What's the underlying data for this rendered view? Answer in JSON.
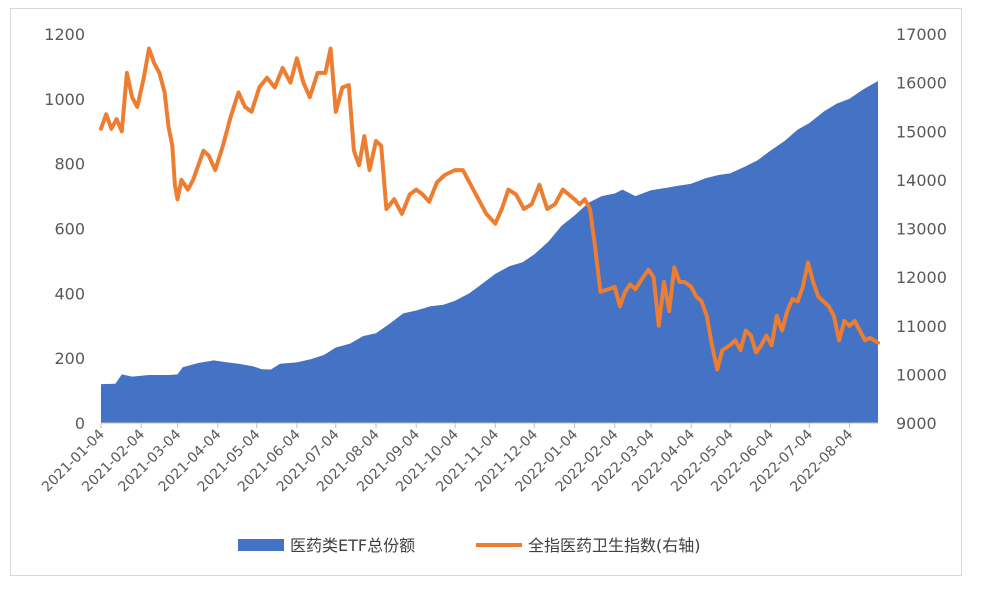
{
  "chart_data": {
    "type": "area",
    "title": "",
    "x_ticks": [
      "2021-01-04",
      "2021-02-04",
      "2021-03-04",
      "2021-04-04",
      "2021-05-04",
      "2021-06-04",
      "2021-07-04",
      "2021-08-04",
      "2021-09-04",
      "2021-10-04",
      "2021-11-04",
      "2021-12-04",
      "2022-01-04",
      "2022-02-04",
      "2022-03-04",
      "2022-04-04",
      "2022-05-04",
      "2022-06-04",
      "2022-07-04",
      "2022-08-04"
    ],
    "x_end": "2022-08-26",
    "y_left": {
      "min": 0,
      "max": 1200,
      "step": 200,
      "ticks": [
        "0",
        "200",
        "400",
        "600",
        "800",
        "1000",
        "1200"
      ]
    },
    "y_right": {
      "min": 9000,
      "max": 17000,
      "step": 1000,
      "ticks": [
        "9000",
        "10000",
        "11000",
        "12000",
        "13000",
        "14000",
        "15000",
        "16000",
        "17000"
      ]
    },
    "grid": false,
    "legend_position": "bottom",
    "colors": {
      "etf": "#4472C4",
      "index": "#ED7D31"
    },
    "series": [
      {
        "name": "医药类ETF总份额",
        "type": "area",
        "axis": "left",
        "points": [
          [
            "2021-01-04",
            120
          ],
          [
            "2021-01-15",
            121
          ],
          [
            "2021-01-20",
            150
          ],
          [
            "2021-01-28",
            143
          ],
          [
            "2021-02-10",
            148
          ],
          [
            "2021-02-25",
            148
          ],
          [
            "2021-03-04",
            150
          ],
          [
            "2021-03-08",
            172
          ],
          [
            "2021-03-20",
            185
          ],
          [
            "2021-04-01",
            193
          ],
          [
            "2021-04-10",
            188
          ],
          [
            "2021-04-20",
            183
          ],
          [
            "2021-05-01",
            175
          ],
          [
            "2021-05-08",
            166
          ],
          [
            "2021-05-15",
            165
          ],
          [
            "2021-05-22",
            183
          ],
          [
            "2021-06-04",
            187
          ],
          [
            "2021-06-15",
            197
          ],
          [
            "2021-06-25",
            210
          ],
          [
            "2021-07-04",
            233
          ],
          [
            "2021-07-15",
            245
          ],
          [
            "2021-07-25",
            268
          ],
          [
            "2021-08-04",
            277
          ],
          [
            "2021-08-15",
            308
          ],
          [
            "2021-08-25",
            338
          ],
          [
            "2021-09-04",
            347
          ],
          [
            "2021-09-15",
            360
          ],
          [
            "2021-09-25",
            365
          ],
          [
            "2021-10-04",
            377
          ],
          [
            "2021-10-15",
            400
          ],
          [
            "2021-10-25",
            430
          ],
          [
            "2021-11-04",
            460
          ],
          [
            "2021-11-15",
            484
          ],
          [
            "2021-11-25",
            496
          ],
          [
            "2021-12-04",
            520
          ],
          [
            "2021-12-15",
            560
          ],
          [
            "2021-12-25",
            608
          ],
          [
            "2022-01-04",
            640
          ],
          [
            "2022-01-15",
            680
          ],
          [
            "2022-01-25",
            700
          ],
          [
            "2022-02-04",
            708
          ],
          [
            "2022-02-10",
            720
          ],
          [
            "2022-02-20",
            700
          ],
          [
            "2022-03-04",
            718
          ],
          [
            "2022-03-15",
            725
          ],
          [
            "2022-03-25",
            732
          ],
          [
            "2022-04-04",
            738
          ],
          [
            "2022-04-15",
            755
          ],
          [
            "2022-04-25",
            765
          ],
          [
            "2022-05-04",
            770
          ],
          [
            "2022-05-15",
            790
          ],
          [
            "2022-05-25",
            810
          ],
          [
            "2022-06-04",
            840
          ],
          [
            "2022-06-15",
            870
          ],
          [
            "2022-06-25",
            905
          ],
          [
            "2022-07-04",
            925
          ],
          [
            "2022-07-15",
            960
          ],
          [
            "2022-07-25",
            985
          ],
          [
            "2022-08-04",
            1000
          ],
          [
            "2022-08-15",
            1030
          ],
          [
            "2022-08-26",
            1055
          ]
        ]
      },
      {
        "name": "全指医药卫生指数(右轴)",
        "type": "line",
        "axis": "right",
        "points": [
          [
            "2021-01-04",
            15050
          ],
          [
            "2021-01-08",
            15350
          ],
          [
            "2021-01-12",
            15050
          ],
          [
            "2021-01-16",
            15250
          ],
          [
            "2021-01-20",
            15000
          ],
          [
            "2021-01-24",
            16200
          ],
          [
            "2021-01-28",
            15700
          ],
          [
            "2021-02-01",
            15500
          ],
          [
            "2021-02-06",
            16100
          ],
          [
            "2021-02-10",
            16700
          ],
          [
            "2021-02-14",
            16400
          ],
          [
            "2021-02-18",
            16200
          ],
          [
            "2021-02-22",
            15800
          ],
          [
            "2021-02-25",
            15100
          ],
          [
            "2021-02-28",
            14700
          ],
          [
            "2021-03-02",
            13900
          ],
          [
            "2021-03-04",
            13600
          ],
          [
            "2021-03-07",
            14000
          ],
          [
            "2021-03-12",
            13800
          ],
          [
            "2021-03-16",
            14000
          ],
          [
            "2021-03-20",
            14300
          ],
          [
            "2021-03-24",
            14600
          ],
          [
            "2021-03-28",
            14500
          ],
          [
            "2021-04-02",
            14200
          ],
          [
            "2021-04-08",
            14700
          ],
          [
            "2021-04-14",
            15300
          ],
          [
            "2021-04-20",
            15800
          ],
          [
            "2021-04-25",
            15500
          ],
          [
            "2021-04-30",
            15400
          ],
          [
            "2021-05-06",
            15900
          ],
          [
            "2021-05-12",
            16100
          ],
          [
            "2021-05-18",
            15900
          ],
          [
            "2021-05-24",
            16300
          ],
          [
            "2021-05-30",
            16000
          ],
          [
            "2021-06-04",
            16500
          ],
          [
            "2021-06-09",
            16000
          ],
          [
            "2021-06-14",
            15700
          ],
          [
            "2021-06-20",
            16200
          ],
          [
            "2021-06-26",
            16200
          ],
          [
            "2021-06-30",
            16700
          ],
          [
            "2021-07-04",
            15400
          ],
          [
            "2021-07-09",
            15900
          ],
          [
            "2021-07-14",
            15950
          ],
          [
            "2021-07-18",
            14600
          ],
          [
            "2021-07-22",
            14300
          ],
          [
            "2021-07-26",
            14900
          ],
          [
            "2021-07-30",
            14200
          ],
          [
            "2021-08-04",
            14800
          ],
          [
            "2021-08-08",
            14700
          ],
          [
            "2021-08-12",
            13400
          ],
          [
            "2021-08-18",
            13600
          ],
          [
            "2021-08-24",
            13300
          ],
          [
            "2021-08-30",
            13700
          ],
          [
            "2021-09-04",
            13800
          ],
          [
            "2021-09-09",
            13700
          ],
          [
            "2021-09-14",
            13550
          ],
          [
            "2021-09-20",
            13950
          ],
          [
            "2021-09-26",
            14100
          ],
          [
            "2021-10-04",
            14200
          ],
          [
            "2021-10-10",
            14200
          ],
          [
            "2021-10-16",
            13900
          ],
          [
            "2021-10-22",
            13600
          ],
          [
            "2021-10-28",
            13300
          ],
          [
            "2021-11-04",
            13100
          ],
          [
            "2021-11-09",
            13400
          ],
          [
            "2021-11-14",
            13800
          ],
          [
            "2021-11-20",
            13700
          ],
          [
            "2021-11-26",
            13400
          ],
          [
            "2021-12-02",
            13500
          ],
          [
            "2021-12-08",
            13900
          ],
          [
            "2021-12-14",
            13400
          ],
          [
            "2021-12-20",
            13500
          ],
          [
            "2021-12-26",
            13800
          ],
          [
            "2022-01-04",
            13600
          ],
          [
            "2022-01-08",
            13500
          ],
          [
            "2022-01-12",
            13600
          ],
          [
            "2022-01-16",
            13400
          ],
          [
            "2022-01-20",
            12600
          ],
          [
            "2022-01-24",
            11700
          ],
          [
            "2022-01-30",
            11750
          ],
          [
            "2022-02-04",
            11800
          ],
          [
            "2022-02-08",
            11400
          ],
          [
            "2022-02-12",
            11700
          ],
          [
            "2022-02-16",
            11850
          ],
          [
            "2022-02-20",
            11750
          ],
          [
            "2022-02-26",
            12000
          ],
          [
            "2022-03-02",
            12150
          ],
          [
            "2022-03-06",
            12000
          ],
          [
            "2022-03-10",
            11000
          ],
          [
            "2022-03-14",
            11900
          ],
          [
            "2022-03-18",
            11300
          ],
          [
            "2022-03-22",
            12200
          ],
          [
            "2022-03-26",
            11900
          ],
          [
            "2022-03-30",
            11900
          ],
          [
            "2022-04-04",
            11800
          ],
          [
            "2022-04-08",
            11600
          ],
          [
            "2022-04-12",
            11500
          ],
          [
            "2022-04-16",
            11200
          ],
          [
            "2022-04-20",
            10600
          ],
          [
            "2022-04-24",
            10100
          ],
          [
            "2022-04-28",
            10500
          ],
          [
            "2022-05-04",
            10600
          ],
          [
            "2022-05-08",
            10700
          ],
          [
            "2022-05-12",
            10500
          ],
          [
            "2022-05-16",
            10900
          ],
          [
            "2022-05-20",
            10800
          ],
          [
            "2022-05-24",
            10450
          ],
          [
            "2022-05-28",
            10600
          ],
          [
            "2022-06-01",
            10800
          ],
          [
            "2022-06-05",
            10600
          ],
          [
            "2022-06-09",
            11200
          ],
          [
            "2022-06-13",
            10900
          ],
          [
            "2022-06-17",
            11300
          ],
          [
            "2022-06-21",
            11550
          ],
          [
            "2022-06-25",
            11500
          ],
          [
            "2022-06-29",
            11800
          ],
          [
            "2022-07-03",
            12300
          ],
          [
            "2022-07-07",
            11900
          ],
          [
            "2022-07-11",
            11600
          ],
          [
            "2022-07-15",
            11500
          ],
          [
            "2022-07-19",
            11400
          ],
          [
            "2022-07-23",
            11200
          ],
          [
            "2022-07-27",
            10700
          ],
          [
            "2022-07-31",
            11100
          ],
          [
            "2022-08-04",
            11000
          ],
          [
            "2022-08-08",
            11100
          ],
          [
            "2022-08-12",
            10900
          ],
          [
            "2022-08-16",
            10700
          ],
          [
            "2022-08-20",
            10750
          ],
          [
            "2022-08-26",
            10650
          ]
        ]
      }
    ]
  }
}
